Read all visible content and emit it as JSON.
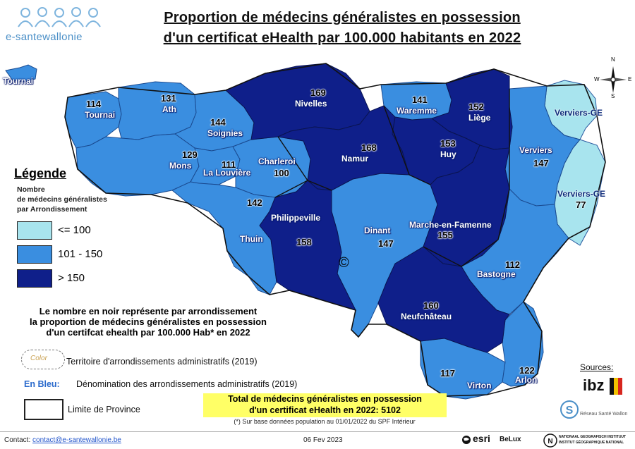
{
  "header": {
    "logo_text": "e-santewallonie",
    "title_line1": "Proportion de médecins généralistes en possession",
    "title_line2": "d'un certificat eHealth par 100.000 habitants en 2022"
  },
  "map": {
    "districts": [
      {
        "name": "Tournai",
        "value": "114"
      },
      {
        "name": "Ath",
        "value": "131"
      },
      {
        "name": "Nivelles",
        "value": "169"
      },
      {
        "name": "Waremme",
        "value": "141"
      },
      {
        "name": "Liège",
        "value": "152"
      },
      {
        "name": "Verviers-GE",
        "value": ""
      },
      {
        "name": "Soignies",
        "value": "144"
      },
      {
        "name": "Mons",
        "value": "129"
      },
      {
        "name": "La Louvière",
        "value": "111"
      },
      {
        "name": "Charleroi",
        "value": "100"
      },
      {
        "name": "Namur",
        "value": "168"
      },
      {
        "name": "Huy",
        "value": "153"
      },
      {
        "name": "Verviers",
        "value": "147"
      },
      {
        "name": "Verviers-GE",
        "value": "77"
      },
      {
        "name": "Thuin",
        "value": "142"
      },
      {
        "name": "Philippeville",
        "value": "158"
      },
      {
        "name": "Dinant",
        "value": "147"
      },
      {
        "name": "Marche-en-Famenne",
        "value": "155"
      },
      {
        "name": "Bastogne",
        "value": "112"
      },
      {
        "name": "Neufchâteau",
        "value": "160"
      },
      {
        "name": "Virton",
        "value": "117"
      },
      {
        "name": "Arlon",
        "value": "122"
      }
    ],
    "inset_label": "Tournai",
    "copyright_mark": "©",
    "compass": {
      "n": "N",
      "s": "S",
      "e": "E",
      "w": "W"
    }
  },
  "legend": {
    "title": "Légende",
    "subtitle_1": "Nombre",
    "subtitle_2": "de médecins généralistes",
    "subtitle_3": "par Arrondissement",
    "classes": [
      {
        "label": "<= 100",
        "color": "#a8e4ee"
      },
      {
        "label": "101 - 150",
        "color": "#3a8ee0"
      },
      {
        "label": "> 150",
        "color": "#0f1f8a"
      }
    ]
  },
  "notes": {
    "line1": "Le nombre en noir représente par arrondissement",
    "line2": "la proportion de médecins généralistes en possession",
    "line3": "d'un certifcat ehealth par 100.000 Hab* en 2022",
    "territory_swatch": "Color",
    "territory_text": "Territoire d'arrondissements administratifs (2019)",
    "blue_label": "En Bleu:",
    "blue_text": "Dénomination des arrondissements administratifs (2019)",
    "province_text": "Limite de Province"
  },
  "total": {
    "line1": "Total de médecins généralistes en possession",
    "line2": "d'un certificat eHealth en 2022: 5102",
    "footnote": "(*) Sur base données population au 01/01/2022 du SPF Intérieur"
  },
  "sources": {
    "label": "Sources:",
    "ibz": "ibz",
    "reseau": "Réseau Santé Wallon"
  },
  "footer": {
    "contact_label": "Contact:",
    "contact_email": "contact@e-santewallonie.be",
    "date": "06 Fev 2023",
    "esri": "esri",
    "belux": "BeLux",
    "ngi_line1": "NATIONAAL GEOGRAFISCH INSTITUUT",
    "ngi_line2": "INSTITUT GÉOGRAPHIQUE NATIONAL"
  }
}
